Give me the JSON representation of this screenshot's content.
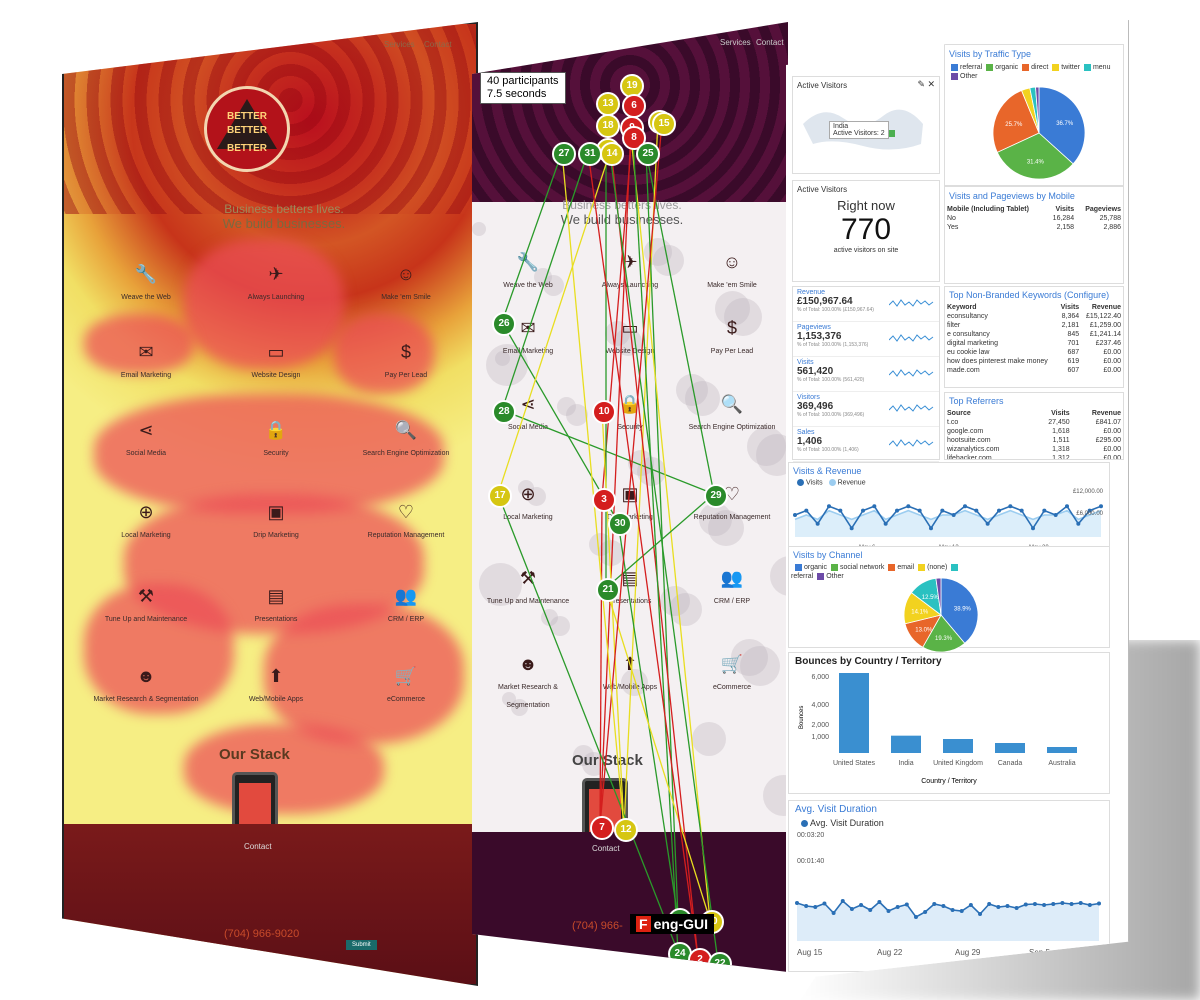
{
  "heatmap_panel": {
    "nav": [
      "Services",
      "Contact"
    ],
    "logo_words": [
      "BETTER",
      "BETTER",
      "BETTER"
    ],
    "hero_line1": "Business betters lives.",
    "hero_line2": "We build businesses.",
    "services": [
      {
        "label": "Weave the Web",
        "icon": "wrench-icon",
        "glyph": "🔧"
      },
      {
        "label": "Always Launching",
        "icon": "plane-icon",
        "glyph": "✈"
      },
      {
        "label": "Make 'em Smile",
        "icon": "smile-icon",
        "glyph": "☺"
      },
      {
        "label": "Email Marketing",
        "icon": "envelope-icon",
        "glyph": "✉"
      },
      {
        "label": "Website Design",
        "icon": "monitor-icon",
        "glyph": "▭"
      },
      {
        "label": "Pay Per Lead",
        "icon": "dollar-icon",
        "glyph": "$"
      },
      {
        "label": "Social Media",
        "icon": "share-icon",
        "glyph": "⋖"
      },
      {
        "label": "Security",
        "icon": "lock-icon",
        "glyph": "🔒"
      },
      {
        "label": "Search Engine Optimization",
        "icon": "search-icon",
        "glyph": "🔍"
      },
      {
        "label": "Local Marketing",
        "icon": "map-pin-icon",
        "glyph": "⊕"
      },
      {
        "label": "Drip Marketing",
        "icon": "drip-icon",
        "glyph": "▣"
      },
      {
        "label": "Reputation Management",
        "icon": "heart-icon",
        "glyph": "♡"
      },
      {
        "label": "Tune Up and Maintenance",
        "icon": "dumbbell-icon",
        "glyph": "⚒"
      },
      {
        "label": "Presentations",
        "icon": "briefcase-icon",
        "glyph": "▤"
      },
      {
        "label": "CRM / ERP",
        "icon": "users-icon",
        "glyph": "👥"
      },
      {
        "label": "Market Research & Segmentation",
        "icon": "face-icon",
        "glyph": "☻"
      },
      {
        "label": "Web/Mobile Apps",
        "icon": "app-icon",
        "glyph": "⬆"
      },
      {
        "label": "eCommerce",
        "icon": "cart-icon",
        "glyph": "🛒"
      }
    ],
    "stack_title": "Our Stack",
    "contact_title": "Contact",
    "phone": "(704) 966-9020",
    "submit_label": "Submit"
  },
  "gaze_panel": {
    "nav": [
      "Services",
      "Contact"
    ],
    "participants": "40 participants",
    "duration": "7.5 seconds",
    "hero_line1": "Business betters lives.",
    "hero_line2": "We build businesses.",
    "stack_title": "Our Stack",
    "contact_title": "Contact",
    "phone": "(704) 966-",
    "brand_mark": "F",
    "brand_text": "eng-GUI",
    "fixations": [
      {
        "n": "19",
        "c": "fy"
      },
      {
        "n": "13",
        "c": "fy"
      },
      {
        "n": "18",
        "c": "fy"
      },
      {
        "n": "6",
        "c": "fr"
      },
      {
        "n": "16",
        "c": "fy"
      },
      {
        "n": "15",
        "c": "fy"
      },
      {
        "n": "9",
        "c": "fr"
      },
      {
        "n": "8",
        "c": "fr"
      },
      {
        "n": "11",
        "c": "fy"
      },
      {
        "n": "27",
        "c": "fg"
      },
      {
        "n": "31",
        "c": "fg"
      },
      {
        "n": "14",
        "c": "fy"
      },
      {
        "n": "25",
        "c": "fg"
      },
      {
        "n": "26",
        "c": "fg"
      },
      {
        "n": "28",
        "c": "fg"
      },
      {
        "n": "10",
        "c": "fr"
      },
      {
        "n": "17",
        "c": "fy"
      },
      {
        "n": "3",
        "c": "fr"
      },
      {
        "n": "30",
        "c": "fg"
      },
      {
        "n": "29",
        "c": "fg"
      },
      {
        "n": "21",
        "c": "fg"
      },
      {
        "n": "7",
        "c": "fr"
      },
      {
        "n": "12",
        "c": "fy"
      },
      {
        "n": "23",
        "c": "fg"
      },
      {
        "n": "20",
        "c": "fy"
      },
      {
        "n": "24",
        "c": "fg"
      },
      {
        "n": "2",
        "c": "fr"
      },
      {
        "n": "22",
        "c": "fg"
      }
    ]
  },
  "analytics_panel": {
    "active_map": {
      "title": "Active Visitors",
      "country": "India",
      "line": "Active Visitors: 2"
    },
    "traffic_type": {
      "title": "Visits by Traffic Type",
      "legend": [
        {
          "label": "referral",
          "color": "#3a7bd5"
        },
        {
          "label": "organic",
          "color": "#5ab347"
        },
        {
          "label": "direct",
          "color": "#e8662a"
        },
        {
          "label": "twitter",
          "color": "#f2d21f"
        },
        {
          "label": "menu",
          "color": "#2ac1c1"
        },
        {
          "label": "Other",
          "color": "#6d4ba8"
        }
      ],
      "slices": [
        {
          "label": "referral",
          "value": 36.7,
          "color": "#3a7bd5"
        },
        {
          "label": "organic",
          "value": 31.4,
          "color": "#5ab347"
        },
        {
          "label": "direct",
          "value": 25.7,
          "color": "#e8662a"
        },
        {
          "label": "twitter",
          "value": 3.0,
          "color": "#f2d21f"
        },
        {
          "label": "menu",
          "value": 2.0,
          "color": "#2ac1c1"
        },
        {
          "label": "Other",
          "value": 1.2,
          "color": "#6d4ba8"
        }
      ],
      "slice_labels": [
        "36.7%",
        "31.4%",
        "25.7%"
      ]
    },
    "right_now": {
      "title": "Active Visitors",
      "heading": "Right now",
      "value": "770",
      "caption": "active visitors on site"
    },
    "mobile": {
      "title": "Visits and Pageviews by Mobile",
      "headers": [
        "Mobile (Including Tablet)",
        "Visits",
        "Pageviews"
      ],
      "rows": [
        [
          "No",
          "16,284",
          "25,788"
        ],
        [
          "Yes",
          "2,158",
          "2,886"
        ]
      ]
    },
    "kpis": [
      {
        "label": "Revenue",
        "value": "£150,967.64",
        "sub": "% of Total: 100.00% (£150,967.64)"
      },
      {
        "label": "Pageviews",
        "value": "1,153,376",
        "sub": "% of Total: 100.00% (1,153,376)"
      },
      {
        "label": "Visits",
        "value": "561,420",
        "sub": "% of Total: 100.00% (561,420)"
      },
      {
        "label": "Visitors",
        "value": "369,496",
        "sub": "% of Total: 100.00% (369,496)"
      },
      {
        "label": "Sales",
        "value": "1,406",
        "sub": "% of Total: 100.00% (1,406)"
      }
    ],
    "keywords": {
      "title": "Top Non-Branded Keywords (Configure)",
      "headers": [
        "Keyword",
        "Visits",
        "Revenue"
      ],
      "rows": [
        [
          "econsultancy",
          "8,364",
          "£15,122.40"
        ],
        [
          "filter",
          "2,181",
          "£1,259.00"
        ],
        [
          "e consultancy",
          "845",
          "£1,241.14"
        ],
        [
          "digital marketing",
          "701",
          "£237.46"
        ],
        [
          "eu cookie law",
          "687",
          "£0.00"
        ],
        [
          "how does pinterest make money",
          "619",
          "£0.00"
        ],
        [
          "made.com",
          "607",
          "£0.00"
        ]
      ]
    },
    "referrers": {
      "title": "Top Referrers",
      "headers": [
        "Source",
        "Visits",
        "Revenue"
      ],
      "rows": [
        [
          "t.co",
          "27,450",
          "£841.07"
        ],
        [
          "google.com",
          "1,618",
          "£0.00"
        ],
        [
          "hootsuite.com",
          "1,511",
          "£295.00"
        ],
        [
          "wizanalytics.com",
          "1,318",
          "£0.00"
        ],
        [
          "lifehacker.com",
          "1,312",
          "£0.00"
        ],
        [
          "pinterest.com",
          "1,263",
          "£0.00"
        ]
      ]
    },
    "chart_data": [
      {
        "type": "line",
        "title": "Visits & Revenue",
        "series": [
          {
            "name": "Visits",
            "values": [
              5,
              6,
              3,
              7,
              6,
              2,
              6,
              7,
              3,
              6,
              7,
              6,
              2,
              6,
              5,
              7,
              6,
              3,
              6,
              7,
              6,
              2,
              6,
              5,
              7,
              3,
              6,
              7
            ]
          },
          {
            "name": "Revenue",
            "values": [
              4,
              5,
              4,
              6,
              5,
              4,
              5,
              6,
              4,
              5,
              6,
              5,
              4,
              5,
              5,
              6,
              5,
              4,
              5,
              6,
              5,
              4,
              5,
              5,
              6,
              4,
              5,
              6
            ]
          }
        ],
        "x_ticks": [
          "May 6",
          "May 13",
          "May 20"
        ],
        "y_ticks": [
          "£12,000.00",
          "£6,000.00"
        ],
        "ylim": [
          0,
          10
        ]
      },
      {
        "type": "pie",
        "title": "Visits by Channel",
        "legend": [
          {
            "label": "organic",
            "color": "#3a7bd5"
          },
          {
            "label": "social network",
            "color": "#5ab347"
          },
          {
            "label": "email",
            "color": "#e8662a"
          },
          {
            "label": "(none)",
            "color": "#f2d21f"
          },
          {
            "label": "referral",
            "color": "#2ac1c1"
          },
          {
            "label": "Other",
            "color": "#6d4ba8"
          }
        ],
        "slices": [
          {
            "label": "organic",
            "value": 38.9,
            "color": "#3a7bd5"
          },
          {
            "label": "social network",
            "value": 19.3,
            "color": "#5ab347"
          },
          {
            "label": "email",
            "value": 13.0,
            "color": "#e8662a"
          },
          {
            "label": "(none)",
            "value": 14.1,
            "color": "#f2d21f"
          },
          {
            "label": "referral",
            "value": 12.5,
            "color": "#2ac1c1"
          },
          {
            "label": "Other",
            "value": 2.2,
            "color": "#6d4ba8"
          }
        ]
      },
      {
        "type": "bar",
        "title": "Bounces by Country / Territory",
        "categories": [
          "United States",
          "India",
          "United Kingdom",
          "Canada",
          "Australia"
        ],
        "values": [
          6000,
          1300,
          1050,
          750,
          450
        ],
        "ylabel": "Bounces",
        "xlabel": "Country / Territory",
        "ylim": [
          0,
          6000
        ],
        "y_ticks": [
          "6,000",
          "4,000",
          "2,000",
          "1,000"
        ]
      },
      {
        "type": "line",
        "title": "Avg. Visit Duration",
        "series": [
          {
            "name": "Avg. Visit Duration",
            "values": [
              76,
              70,
              68,
              75,
              56,
              80,
              64,
              72,
              62,
              78,
              60,
              68,
              73,
              48,
              58,
              74,
              70,
              62,
              60,
              72,
              54,
              74,
              68,
              70,
              66,
              73,
              74,
              72,
              74,
              76,
              74,
              76,
              72,
              75
            ]
          }
        ],
        "x_ticks": [
          "Aug 15",
          "Aug 22",
          "Aug 29",
          "Sep 5"
        ],
        "y_ticks": [
          "00:03:20",
          "00:01:40"
        ],
        "ylim": [
          0,
          200
        ]
      }
    ]
  }
}
